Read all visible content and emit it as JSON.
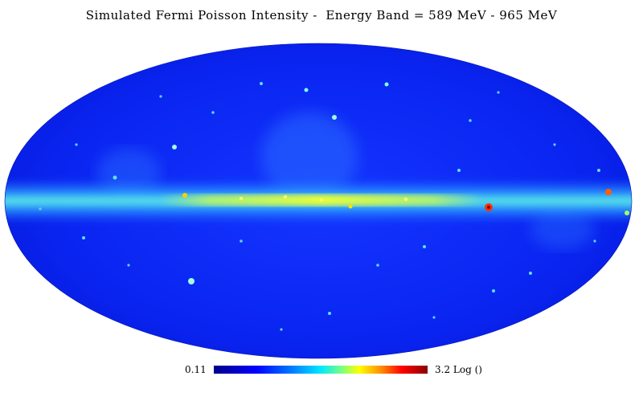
{
  "title": "Simulated Fermi Poisson Intensity -  Energy Band = 589 MeV - 965 MeV",
  "colorbar": {
    "min_label": "0.11",
    "max_label": "3.2 Log ()",
    "colormap": "jet"
  },
  "map": {
    "projection": "mollweide",
    "background_color": "#0a1cf0",
    "plane_color": "#3cc8ff",
    "plane_core_color": "#e0ff30"
  }
}
